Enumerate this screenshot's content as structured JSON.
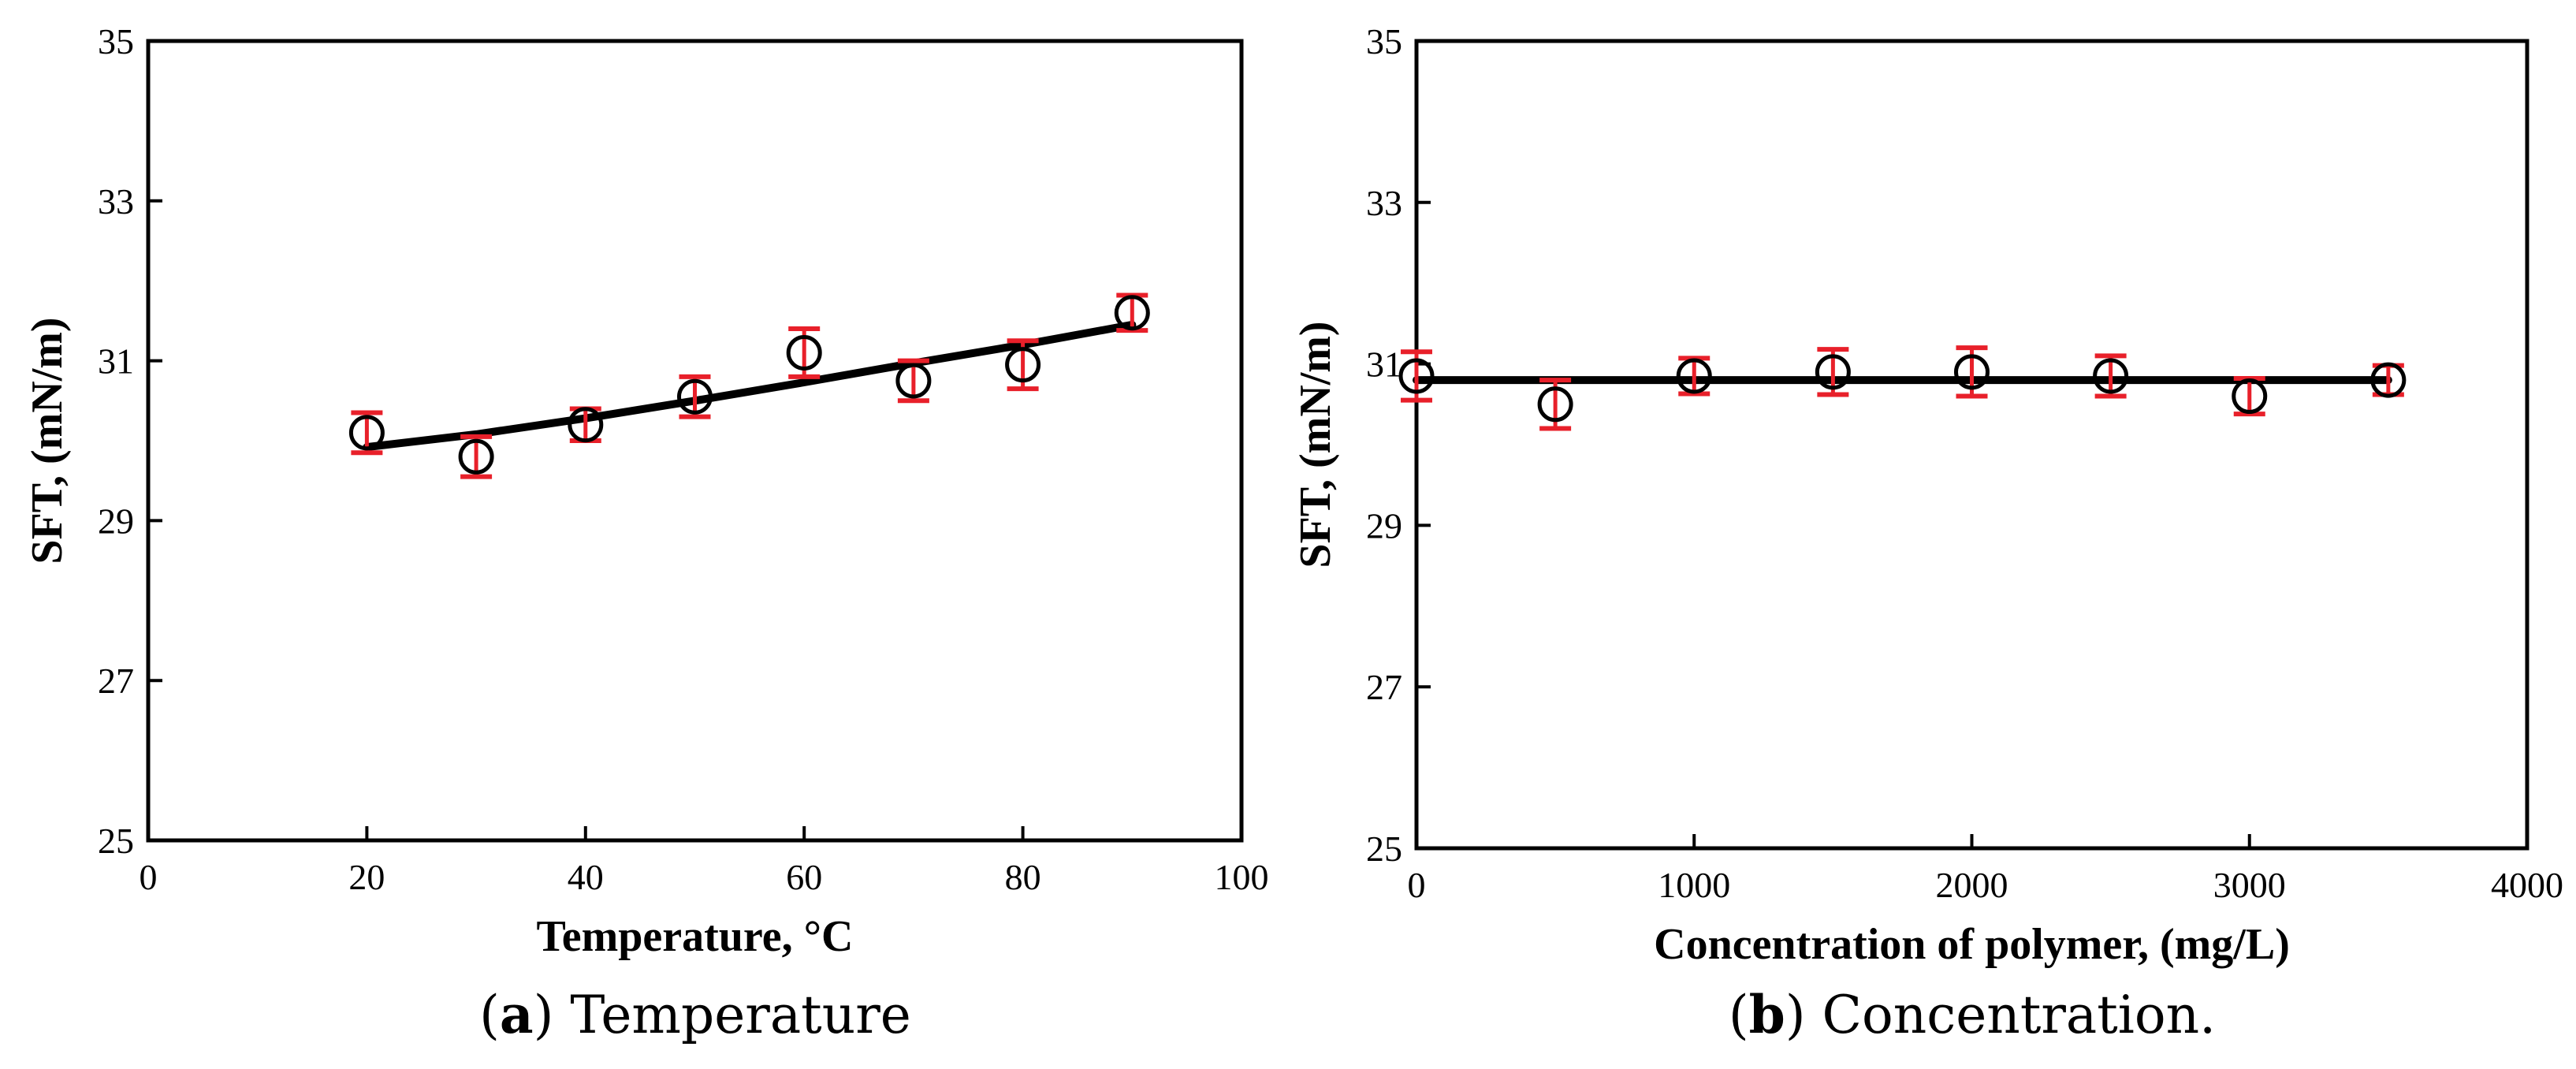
{
  "chart_data": [
    {
      "type": "scatter",
      "caption_letter": "a",
      "caption_text": "Temperature",
      "xlabel": "Temperature, °C",
      "ylabel": "SFT, (mN/m)",
      "xlim": [
        0,
        100
      ],
      "ylim": [
        25,
        35
      ],
      "xticks": [
        0,
        20,
        40,
        60,
        80,
        100
      ],
      "yticks": [
        25,
        27,
        29,
        31,
        33,
        35
      ],
      "grid": false,
      "series": [
        {
          "name": "measured",
          "marker": "open-circle",
          "x": [
            20,
            30,
            40,
            50,
            60,
            70,
            80,
            90
          ],
          "y": [
            30.1,
            29.8,
            30.2,
            30.55,
            31.1,
            30.75,
            30.95,
            31.6
          ],
          "yerr": [
            0.25,
            0.25,
            0.2,
            0.25,
            0.3,
            0.25,
            0.3,
            0.22
          ],
          "error_color": "#e8202a"
        },
        {
          "name": "fit",
          "line": true,
          "x": [
            20,
            30,
            40,
            50,
            60,
            70,
            80,
            90
          ],
          "y": [
            29.92,
            30.08,
            30.28,
            30.5,
            30.73,
            30.97,
            31.2,
            31.45
          ]
        }
      ]
    },
    {
      "type": "scatter",
      "caption_letter": "b",
      "caption_text": "Concentration.",
      "xlabel": "Concentration of polymer, (mg/L)",
      "ylabel": "SFT, (mN/m)",
      "xlim": [
        0,
        4000
      ],
      "ylim": [
        25,
        35
      ],
      "xticks": [
        0,
        1000,
        2000,
        3000,
        4000
      ],
      "yticks": [
        25,
        27,
        29,
        31,
        33,
        35
      ],
      "grid": false,
      "series": [
        {
          "name": "measured",
          "marker": "open-circle",
          "x": [
            0,
            500,
            1000,
            1500,
            2000,
            2500,
            3000,
            3500
          ],
          "y": [
            30.85,
            30.5,
            30.85,
            30.9,
            30.9,
            30.85,
            30.6,
            30.8
          ],
          "yerr": [
            0.3,
            0.3,
            0.22,
            0.28,
            0.3,
            0.25,
            0.22,
            0.18
          ],
          "error_color": "#e8202a"
        },
        {
          "name": "fit",
          "line": true,
          "x": [
            0,
            3500
          ],
          "y": [
            30.8,
            30.8
          ]
        }
      ]
    }
  ]
}
